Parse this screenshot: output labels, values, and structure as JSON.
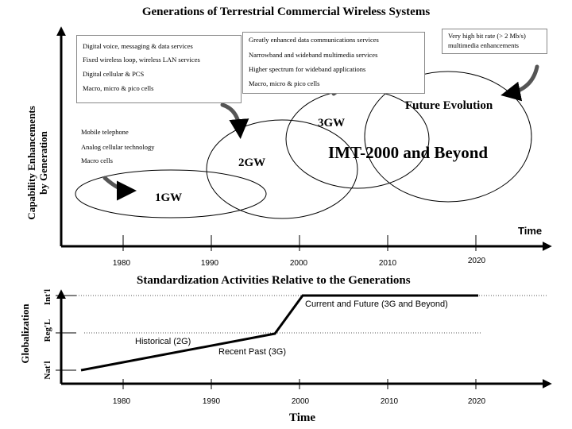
{
  "title": "Generations of Terrestrial Commercial Wireless Systems",
  "top_chart": {
    "y_label_line1": "Capability Enhancements",
    "y_label_line2": "by Generation",
    "x_label": "Time",
    "years": [
      "1980",
      "1990",
      "2000",
      "2010",
      "2020"
    ],
    "gen1": {
      "label": "1GW",
      "features": [
        "Mobile telephone",
        "Analog cellular technology",
        "Macro cells"
      ]
    },
    "gen2": {
      "label": "2GW",
      "features": [
        "Digital voice, messaging & data services",
        "Fixed wireless loop, wireless LAN services",
        "Digital cellular & PCS",
        "Macro, micro & pico cells"
      ]
    },
    "gen3": {
      "label": "3GW",
      "features": [
        "Greatly enhanced data communications services",
        "Narrowband and wideband multimedia services",
        "Higher spectrum for wideband applications",
        "Macro, micro & pico cells"
      ]
    },
    "future": {
      "label": "Future Evolution",
      "note_line1": "Very high bit rate (> 2 Mb/s)",
      "note_line2": "multimedia enhancements"
    },
    "imt_label": "IMT-2000 and Beyond"
  },
  "bottom_chart": {
    "title": "Standardization Activities Relative to the Generations",
    "y_label": "Globalization",
    "levels": [
      "Nat'l",
      "Reg'L",
      "Int'l"
    ],
    "x_label": "Time",
    "years": [
      "1980",
      "1990",
      "2000",
      "2010",
      "2020"
    ],
    "annotations": {
      "historical": "Historical (2G)",
      "recent": "Recent Past (3G)",
      "current": "Current and Future (3G and Beyond)"
    }
  },
  "colors": {
    "ink": "#000000",
    "arrow": "#555555",
    "box_border": "#888888",
    "background": "#ffffff"
  }
}
